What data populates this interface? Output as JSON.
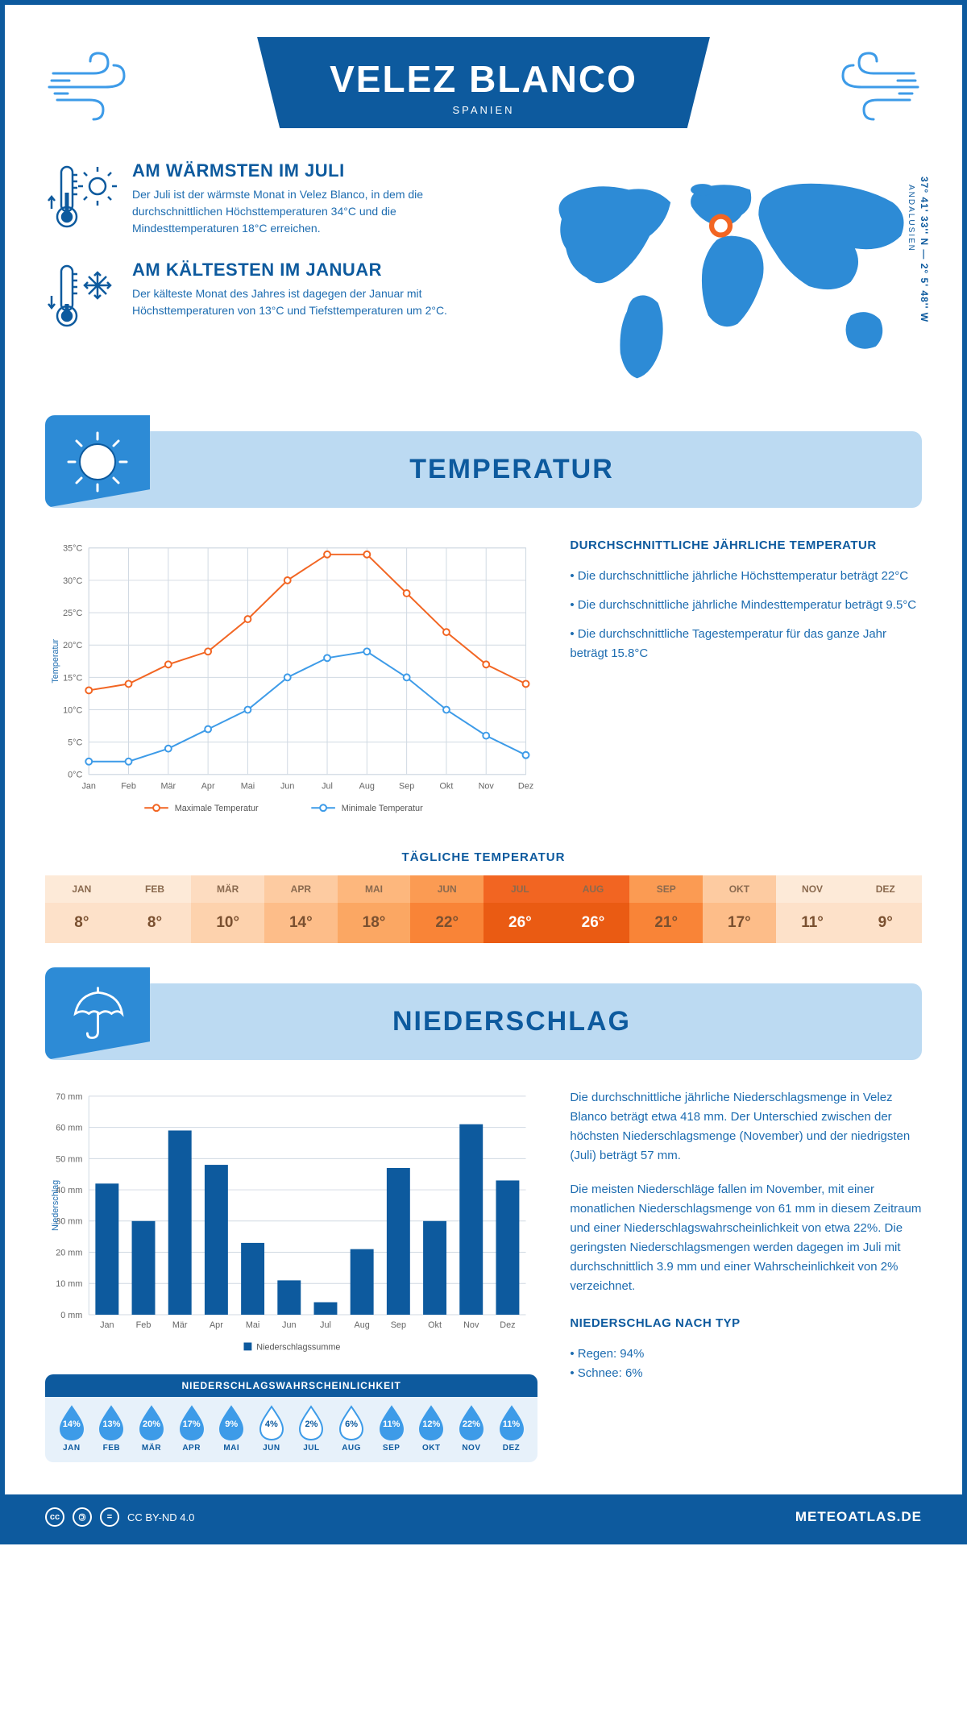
{
  "header": {
    "title": "VELEZ BLANCO",
    "country": "SPANIEN",
    "coords": "37° 41' 33'' N — 2° 5' 48'' W",
    "region": "ANDALUSIEN"
  },
  "colors": {
    "primary": "#0d5a9e",
    "light_blue": "#bcdaf2",
    "mid_blue": "#2d8bd6",
    "text_blue": "#1d6cb0",
    "orange": "#f26522",
    "line_blue": "#3d9be8",
    "grid": "#d0d9e2",
    "bg_light": "#e7f1fa"
  },
  "warmest": {
    "title": "AM WÄRMSTEN IM JULI",
    "text": "Der Juli ist der wärmste Monat in Velez Blanco, in dem die durchschnittlichen Höchsttemperaturen 34°C und die Mindesttemperaturen 18°C erreichen."
  },
  "coldest": {
    "title": "AM KÄLTESTEN IM JANUAR",
    "text": "Der kälteste Monat des Jahres ist dagegen der Januar mit Höchsttemperaturen von 13°C und Tiefsttemperaturen um 2°C."
  },
  "temp_section": {
    "heading": "TEMPERATUR",
    "chart": {
      "type": "line",
      "months": [
        "Jan",
        "Feb",
        "Mär",
        "Apr",
        "Mai",
        "Jun",
        "Jul",
        "Aug",
        "Sep",
        "Okt",
        "Nov",
        "Dez"
      ],
      "max_series": {
        "label": "Maximale Temperatur",
        "color": "#f26522",
        "values": [
          13,
          14,
          17,
          19,
          24,
          30,
          34,
          34,
          28,
          22,
          17,
          14
        ]
      },
      "min_series": {
        "label": "Minimale Temperatur",
        "color": "#3d9be8",
        "values": [
          2,
          2,
          4,
          7,
          10,
          15,
          18,
          19,
          15,
          10,
          6,
          3
        ]
      },
      "ylabel": "Temperatur",
      "ylim": [
        0,
        35
      ],
      "ytick_step": 5,
      "grid_color": "#d0d9e2",
      "marker": "circle-open",
      "line_width": 2
    },
    "desc_title": "DURCHSCHNITTLICHE JÄHRLICHE TEMPERATUR",
    "bullets": [
      "• Die durchschnittliche jährliche Höchsttemperatur beträgt 22°C",
      "• Die durchschnittliche jährliche Mindesttemperatur beträgt 9.5°C",
      "• Die durchschnittliche Tagestemperatur für das ganze Jahr beträgt 15.8°C"
    ],
    "daily_table": {
      "title": "TÄGLICHE TEMPERATUR",
      "months": [
        "JAN",
        "FEB",
        "MÄR",
        "APR",
        "MAI",
        "JUN",
        "JUL",
        "AUG",
        "SEP",
        "OKT",
        "NOV",
        "DEZ"
      ],
      "values": [
        "8°",
        "8°",
        "10°",
        "14°",
        "18°",
        "22°",
        "26°",
        "26°",
        "21°",
        "17°",
        "11°",
        "9°"
      ],
      "header_colors": [
        "#fdead8",
        "#fdead8",
        "#fddcc0",
        "#fdcba1",
        "#fdb77d",
        "#fb9b53",
        "#f26522",
        "#f26522",
        "#fb9b53",
        "#fdcba1",
        "#fdead8",
        "#fdead8"
      ],
      "value_colors": [
        "#fde1c9",
        "#fde1c9",
        "#fdd2ad",
        "#fdbd89",
        "#fba763",
        "#f98437",
        "#ea5b13",
        "#ea5b13",
        "#f98437",
        "#fdbd89",
        "#fde1c9",
        "#fde1c9"
      ],
      "header_text": "#8a6a4f",
      "hot_text": "#ffffff",
      "mild_text": "#7a5030"
    }
  },
  "precip_section": {
    "heading": "NIEDERSCHLAG",
    "chart": {
      "type": "bar",
      "months": [
        "Jan",
        "Feb",
        "Mär",
        "Apr",
        "Mai",
        "Jun",
        "Jul",
        "Aug",
        "Sep",
        "Okt",
        "Nov",
        "Dez"
      ],
      "values": [
        42,
        30,
        59,
        48,
        23,
        11,
        4,
        21,
        47,
        30,
        61,
        43
      ],
      "bar_color": "#0d5a9e",
      "ylabel": "Niederschlag",
      "ylim": [
        0,
        70
      ],
      "ytick_step": 10,
      "legend": "Niederschlagssumme",
      "grid_color": "#d0d9e2"
    },
    "desc_p1": "Die durchschnittliche jährliche Niederschlagsmenge in Velez Blanco beträgt etwa 418 mm. Der Unterschied zwischen der höchsten Niederschlagsmenge (November) und der niedrigsten (Juli) beträgt 57 mm.",
    "desc_p2": "Die meisten Niederschläge fallen im November, mit einer monatlichen Niederschlagsmenge von 61 mm in diesem Zeitraum und einer Niederschlagswahrscheinlichkeit von etwa 22%. Die geringsten Niederschlagsmengen werden dagegen im Juli mit durchschnittlich 3.9 mm und einer Wahrscheinlichkeit von 2% verzeichnet.",
    "by_type_title": "NIEDERSCHLAG NACH TYP",
    "by_type": [
      "• Regen: 94%",
      "• Schnee: 6%"
    ],
    "prob": {
      "title": "NIEDERSCHLAGSWAHRSCHEINLICHKEIT",
      "months": [
        "JAN",
        "FEB",
        "MÄR",
        "APR",
        "MAI",
        "JUN",
        "JUL",
        "AUG",
        "SEP",
        "OKT",
        "NOV",
        "DEZ"
      ],
      "values": [
        "14%",
        "13%",
        "20%",
        "17%",
        "9%",
        "4%",
        "2%",
        "6%",
        "11%",
        "12%",
        "22%",
        "11%"
      ],
      "fill_threshold_light": 8,
      "dark_fill": "#3d9be8",
      "light_fill": "#ffffff",
      "stroke": "#3d9be8"
    }
  },
  "footer": {
    "license": "CC BY-ND 4.0",
    "site": "METEOATLAS.DE"
  }
}
